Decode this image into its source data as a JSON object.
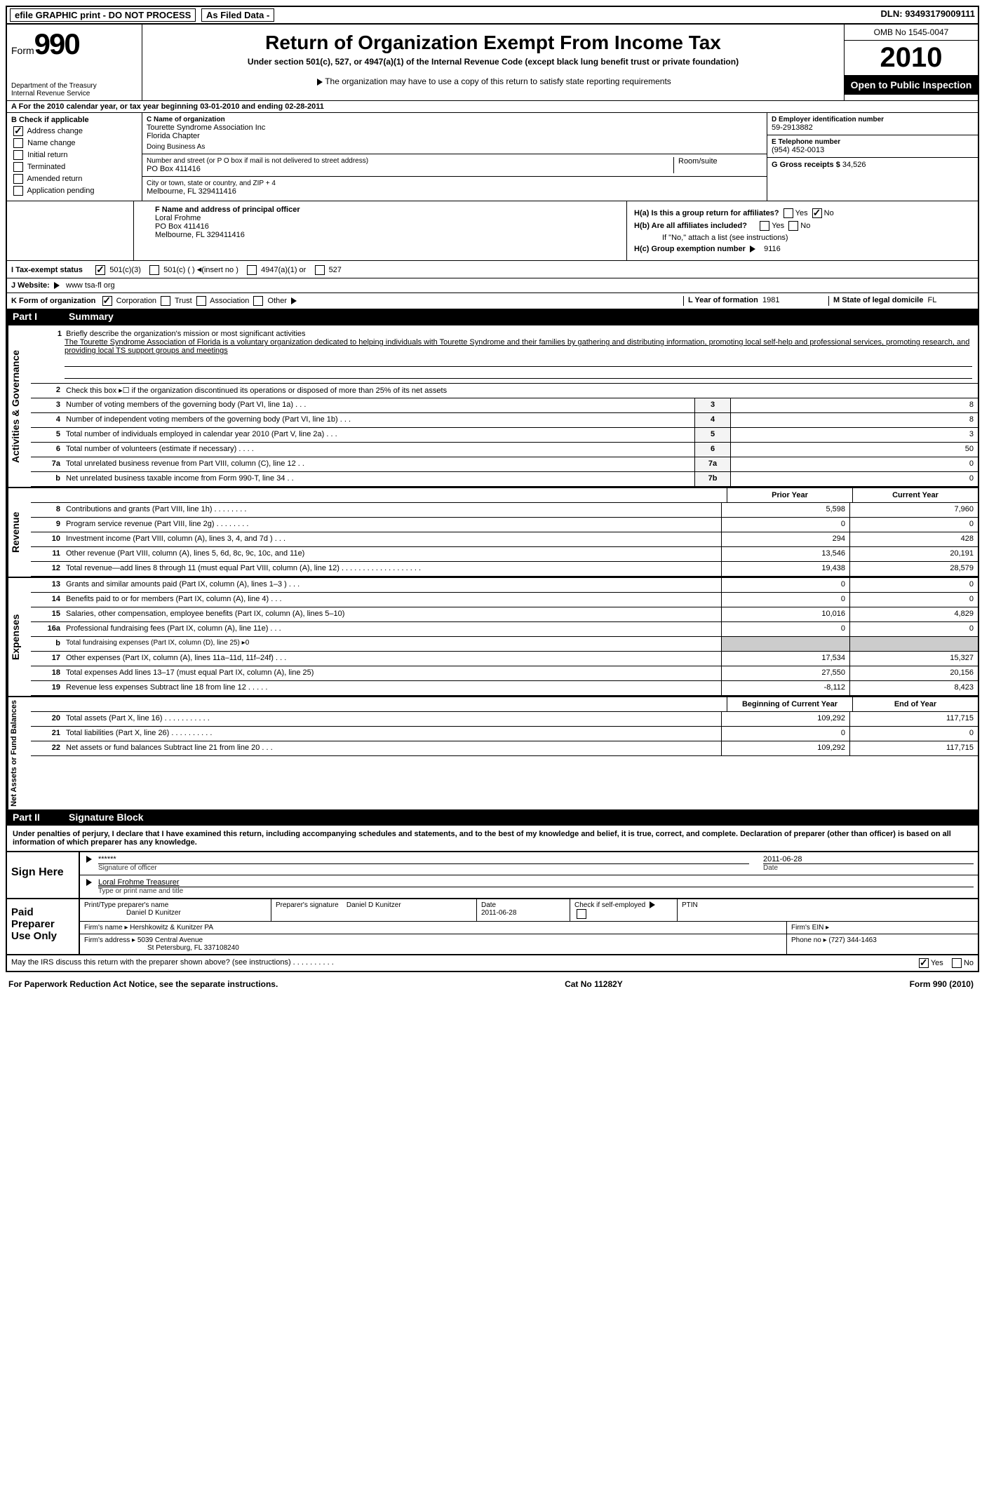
{
  "topbar": {
    "efile": "efile GRAPHIC print - DO NOT PROCESS",
    "asfiled": "As Filed Data -",
    "dln_label": "DLN:",
    "dln": "93493179009111"
  },
  "header": {
    "form_label": "Form",
    "form_num": "990",
    "dept1": "Department of the Treasury",
    "dept2": "Internal Revenue Service",
    "title": "Return of Organization Exempt From Income Tax",
    "subtitle": "Under section 501(c), 527, or 4947(a)(1) of the Internal Revenue Code (except black lung benefit trust or private foundation)",
    "note": "The organization may have to use a copy of this return to satisfy state reporting requirements",
    "omb": "OMB No 1545-0047",
    "year": "2010",
    "open": "Open to Public Inspection"
  },
  "sectionA": "A For the 2010 calendar year, or tax year beginning 03-01-2010    and ending 02-28-2011",
  "colB": {
    "title": "B Check if applicable",
    "items": [
      "Address change",
      "Name change",
      "Initial return",
      "Terminated",
      "Amended return",
      "Application pending"
    ],
    "checked": [
      true,
      false,
      false,
      false,
      false,
      false
    ]
  },
  "colC": {
    "name_label": "C Name of organization",
    "name1": "Tourette Syndrome Association Inc",
    "name2": "Florida Chapter",
    "dba_label": "Doing Business As",
    "addr_label": "Number and street (or P O  box if mail is not delivered to street address)",
    "addr": "PO Box 411416",
    "room_label": "Room/suite",
    "city_label": "City or town, state or country, and ZIP + 4",
    "city": "Melbourne, FL  329411416"
  },
  "colD": {
    "ein_label": "D Employer identification number",
    "ein": "59-2913882",
    "phone_label": "E Telephone number",
    "phone": "(954) 452-0013",
    "gross_label": "G Gross receipts $",
    "gross": "34,526"
  },
  "sectionF": {
    "label": "F  Name and address of principal officer",
    "name": "Loral Frohme",
    "addr1": "PO Box 411416",
    "addr2": "Melbourne, FL  329411416"
  },
  "sectionH": {
    "a": "H(a)  Is this a group return for affiliates?",
    "b": "H(b)  Are all affiliates included?",
    "b_note": "If \"No,\" attach a list  (see instructions)",
    "c": "H(c)   Group exemption number",
    "c_val": "9116",
    "yes": "Yes",
    "no": "No"
  },
  "sectionI": {
    "label": "I   Tax-exempt status",
    "opts": [
      "501(c)(3)",
      "501(c) (  )",
      "(insert no )",
      "4947(a)(1) or",
      "527"
    ]
  },
  "sectionJ": {
    "label": "J   Website:",
    "val": "www tsa-fl org"
  },
  "sectionK": {
    "label": "K Form of organization",
    "opts": [
      "Corporation",
      "Trust",
      "Association",
      "Other"
    ],
    "l_label": "L Year of formation",
    "l_val": "1981",
    "m_label": "M State of legal domicile",
    "m_val": "FL"
  },
  "partI": {
    "num": "Part I",
    "title": "Summary"
  },
  "governance": {
    "label": "Activities & Governance",
    "line1_label": "Briefly describe the organization's mission or most significant activities",
    "line1_text": "The Tourette Syndrome Association of Florida is a voluntary organization dedicated to helping individuals with Tourette Syndrome and their families by gathering and distributing information, promoting local self-help and professional services, promoting research, and providing local TS support groups and meetings",
    "line2": "Check this box ▸☐ if the organization discontinued its operations or disposed of more than 25% of its net assets",
    "rows": [
      {
        "n": "3",
        "d": "Number of voting members of the governing body (Part VI, line 1a)   .   .   .",
        "b": "3",
        "v": "8"
      },
      {
        "n": "4",
        "d": "Number of independent voting members of the governing body (Part VI, line 1b)   .   .   .",
        "b": "4",
        "v": "8"
      },
      {
        "n": "5",
        "d": "Total number of individuals employed in calendar year 2010 (Part V, line 2a)   .   .   .",
        "b": "5",
        "v": "3"
      },
      {
        "n": "6",
        "d": "Total number of volunteers (estimate if necessary)   .   .   .   .",
        "b": "6",
        "v": "50"
      },
      {
        "n": "7a",
        "d": "Total unrelated business revenue from Part VIII, column (C), line 12   .   .",
        "b": "7a",
        "v": "0"
      },
      {
        "n": "b",
        "d": "Net unrelated business taxable income from Form 990-T, line 34   .   .",
        "b": "7b",
        "v": "0"
      }
    ]
  },
  "revenue": {
    "label": "Revenue",
    "h1": "Prior Year",
    "h2": "Current Year",
    "rows": [
      {
        "n": "8",
        "d": "Contributions and grants (Part VIII, line 1h)   .   .   .   .   .   .   .   .",
        "v1": "5,598",
        "v2": "7,960"
      },
      {
        "n": "9",
        "d": "Program service revenue (Part VIII, line 2g)   .   .   .   .   .   .   .   .",
        "v1": "0",
        "v2": "0"
      },
      {
        "n": "10",
        "d": "Investment income (Part VIII, column (A), lines 3, 4, and 7d )   .   .   .",
        "v1": "294",
        "v2": "428"
      },
      {
        "n": "11",
        "d": "Other revenue (Part VIII, column (A), lines 5, 6d, 8c, 9c, 10c, and 11e)",
        "v1": "13,546",
        "v2": "20,191"
      },
      {
        "n": "12",
        "d": "Total revenue—add lines 8 through 11 (must equal Part VIII, column (A), line 12)   .   .   .   .   .   .   .   .   .   .   .   .   .   .   .   .   .   .   .",
        "v1": "19,438",
        "v2": "28,579"
      }
    ]
  },
  "expenses": {
    "label": "Expenses",
    "rows": [
      {
        "n": "13",
        "d": "Grants and similar amounts paid (Part IX, column (A), lines 1–3 )   .   .   .",
        "v1": "0",
        "v2": "0"
      },
      {
        "n": "14",
        "d": "Benefits paid to or for members (Part IX, column (A), line 4)   .   .   .",
        "v1": "0",
        "v2": "0"
      },
      {
        "n": "15",
        "d": "Salaries, other compensation, employee benefits (Part IX, column (A), lines 5–10)",
        "v1": "10,016",
        "v2": "4,829"
      },
      {
        "n": "16a",
        "d": "Professional fundraising fees (Part IX, column (A), line 11e)   .   .   .",
        "v1": "0",
        "v2": "0"
      },
      {
        "n": "b",
        "d": "Total fundraising expenses (Part IX, column (D), line 25)  ▸0",
        "v1": "",
        "v2": "",
        "grey": true
      },
      {
        "n": "17",
        "d": "Other expenses (Part IX, column (A), lines 11a–11d, 11f–24f)   .   .   .",
        "v1": "17,534",
        "v2": "15,327"
      },
      {
        "n": "18",
        "d": "Total expenses  Add lines 13–17 (must equal Part IX, column (A), line 25)",
        "v1": "27,550",
        "v2": "20,156"
      },
      {
        "n": "19",
        "d": "Revenue less expenses  Subtract line 18 from line 12   .   .   .   .   .",
        "v1": "-8,112",
        "v2": "8,423"
      }
    ]
  },
  "netassets": {
    "label": "Net Assets or Fund Balances",
    "h1": "Beginning of Current Year",
    "h2": "End of Year",
    "rows": [
      {
        "n": "20",
        "d": "Total assets (Part X, line 16)   .   .   .   .   .   .   .   .   .   .   .",
        "v1": "109,292",
        "v2": "117,715"
      },
      {
        "n": "21",
        "d": "Total liabilities (Part X, line 26)   .   .   .   .   .   .   .   .   .   .",
        "v1": "0",
        "v2": "0"
      },
      {
        "n": "22",
        "d": "Net assets or fund balances  Subtract line 21 from line 20   .   .   .",
        "v1": "109,292",
        "v2": "117,715"
      }
    ]
  },
  "partII": {
    "num": "Part II",
    "title": "Signature Block",
    "declaration": "Under penalties of perjury, I declare that I have examined this return, including accompanying schedules and statements, and to the best of my knowledge and belief, it is true, correct, and complete. Declaration of preparer (other than officer) is based on all information of which preparer has any knowledge."
  },
  "sign": {
    "label": "Sign Here",
    "sig": "******",
    "sig_label": "Signature of officer",
    "date": "2011-06-28",
    "date_label": "Date",
    "name": "Loral Frohme Treasurer",
    "name_label": "Type or print name and title"
  },
  "preparer": {
    "label": "Paid Preparer Use Only",
    "r1": {
      "c1_label": "Print/Type preparer's name",
      "c1": "Daniel D Kunitzer",
      "c2_label": "Preparer's signature",
      "c2": "Daniel D Kunitzer",
      "c3_label": "Date",
      "c3": "2011-06-28",
      "c4_label": "Check if self-employed",
      "c5_label": "PTIN"
    },
    "r2": {
      "firm_label": "Firm's name   ▸",
      "firm": "Hershkowitz & Kunitzer PA",
      "ein_label": "Firm's EIN   ▸"
    },
    "r3": {
      "addr_label": "Firm's address  ▸",
      "addr1": "5039 Central Avenue",
      "addr2": "St Petersburg, FL  337108240",
      "phone_label": "Phone no   ▸",
      "phone": "(727) 344-1463"
    }
  },
  "discuss": {
    "text": "May the IRS discuss this return with the preparer shown above? (see instructions)   .   .   .   .   .   .   .   .   .   .",
    "yes": "Yes",
    "no": "No"
  },
  "footer": {
    "left": "For Paperwork Reduction Act Notice, see the separate instructions.",
    "mid": "Cat No  11282Y",
    "right": "Form 990 (2010)"
  }
}
